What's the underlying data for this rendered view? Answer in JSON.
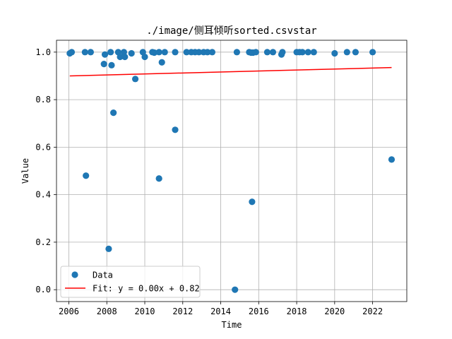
{
  "chart_data": {
    "type": "scatter",
    "title": "./image/侧耳倾听sorted.csvstar",
    "xlabel": "Time",
    "ylabel": "Value",
    "xlim": [
      2005.35,
      2023.8
    ],
    "ylim": [
      -0.05,
      1.05
    ],
    "x_ticks": [
      2006,
      2008,
      2010,
      2012,
      2014,
      2016,
      2018,
      2020,
      2022
    ],
    "x_tick_labels": [
      "2006",
      "2008",
      "2010",
      "2012",
      "2014",
      "2016",
      "2018",
      "2020",
      "2022"
    ],
    "y_ticks": [
      0.0,
      0.2,
      0.4,
      0.6,
      0.8,
      1.0
    ],
    "y_tick_labels": [
      "0.0",
      "0.2",
      "0.4",
      "0.6",
      "0.8",
      "1.0"
    ],
    "grid": true,
    "legend_position": "lower-left",
    "colors": {
      "points": "#1f77b4",
      "fit_line": "#ff0000",
      "grid": "#b0b0b0"
    },
    "series": [
      {
        "name": "Data",
        "kind": "scatter",
        "points": [
          {
            "x": 2006.05,
            "y": 0.995
          },
          {
            "x": 2006.15,
            "y": 1.0
          },
          {
            "x": 2006.85,
            "y": 1.0
          },
          {
            "x": 2006.9,
            "y": 0.48
          },
          {
            "x": 2007.15,
            "y": 1.0
          },
          {
            "x": 2007.85,
            "y": 0.95
          },
          {
            "x": 2007.9,
            "y": 0.99
          },
          {
            "x": 2008.1,
            "y": 0.172
          },
          {
            "x": 2008.2,
            "y": 1.0
          },
          {
            "x": 2008.25,
            "y": 0.945
          },
          {
            "x": 2008.35,
            "y": 0.745
          },
          {
            "x": 2008.6,
            "y": 1.0
          },
          {
            "x": 2008.7,
            "y": 0.98
          },
          {
            "x": 2008.9,
            "y": 1.0
          },
          {
            "x": 2008.95,
            "y": 0.98
          },
          {
            "x": 2009.3,
            "y": 0.995
          },
          {
            "x": 2009.5,
            "y": 0.887
          },
          {
            "x": 2009.9,
            "y": 1.0
          },
          {
            "x": 2010.0,
            "y": 0.98
          },
          {
            "x": 2010.4,
            "y": 1.0
          },
          {
            "x": 2010.5,
            "y": 0.998
          },
          {
            "x": 2010.75,
            "y": 1.0
          },
          {
            "x": 2010.75,
            "y": 0.468
          },
          {
            "x": 2010.9,
            "y": 0.957
          },
          {
            "x": 2011.05,
            "y": 1.0
          },
          {
            "x": 2011.6,
            "y": 1.0
          },
          {
            "x": 2011.6,
            "y": 0.673
          },
          {
            "x": 2012.2,
            "y": 1.0
          },
          {
            "x": 2012.45,
            "y": 1.0
          },
          {
            "x": 2012.65,
            "y": 1.0
          },
          {
            "x": 2012.85,
            "y": 1.0
          },
          {
            "x": 2013.1,
            "y": 1.0
          },
          {
            "x": 2013.3,
            "y": 1.0
          },
          {
            "x": 2013.55,
            "y": 1.0
          },
          {
            "x": 2014.75,
            "y": 0.0
          },
          {
            "x": 2014.85,
            "y": 1.0
          },
          {
            "x": 2015.5,
            "y": 1.0
          },
          {
            "x": 2015.6,
            "y": 0.998
          },
          {
            "x": 2015.65,
            "y": 0.37
          },
          {
            "x": 2015.7,
            "y": 0.998
          },
          {
            "x": 2015.85,
            "y": 1.0
          },
          {
            "x": 2016.45,
            "y": 1.0
          },
          {
            "x": 2016.75,
            "y": 1.0
          },
          {
            "x": 2017.2,
            "y": 0.99
          },
          {
            "x": 2017.25,
            "y": 1.0
          },
          {
            "x": 2018.0,
            "y": 1.0
          },
          {
            "x": 2018.15,
            "y": 1.0
          },
          {
            "x": 2018.3,
            "y": 1.0
          },
          {
            "x": 2018.6,
            "y": 1.0
          },
          {
            "x": 2018.9,
            "y": 1.0
          },
          {
            "x": 2020.0,
            "y": 0.995
          },
          {
            "x": 2020.65,
            "y": 1.0
          },
          {
            "x": 2021.1,
            "y": 1.0
          },
          {
            "x": 2022.0,
            "y": 1.0
          },
          {
            "x": 2023.0,
            "y": 0.548
          }
        ]
      },
      {
        "name": "Fit: y = 0.00x + 0.82",
        "kind": "line",
        "points": [
          {
            "x": 2006.05,
            "y": 0.9
          },
          {
            "x": 2023.0,
            "y": 0.935
          }
        ]
      }
    ]
  }
}
